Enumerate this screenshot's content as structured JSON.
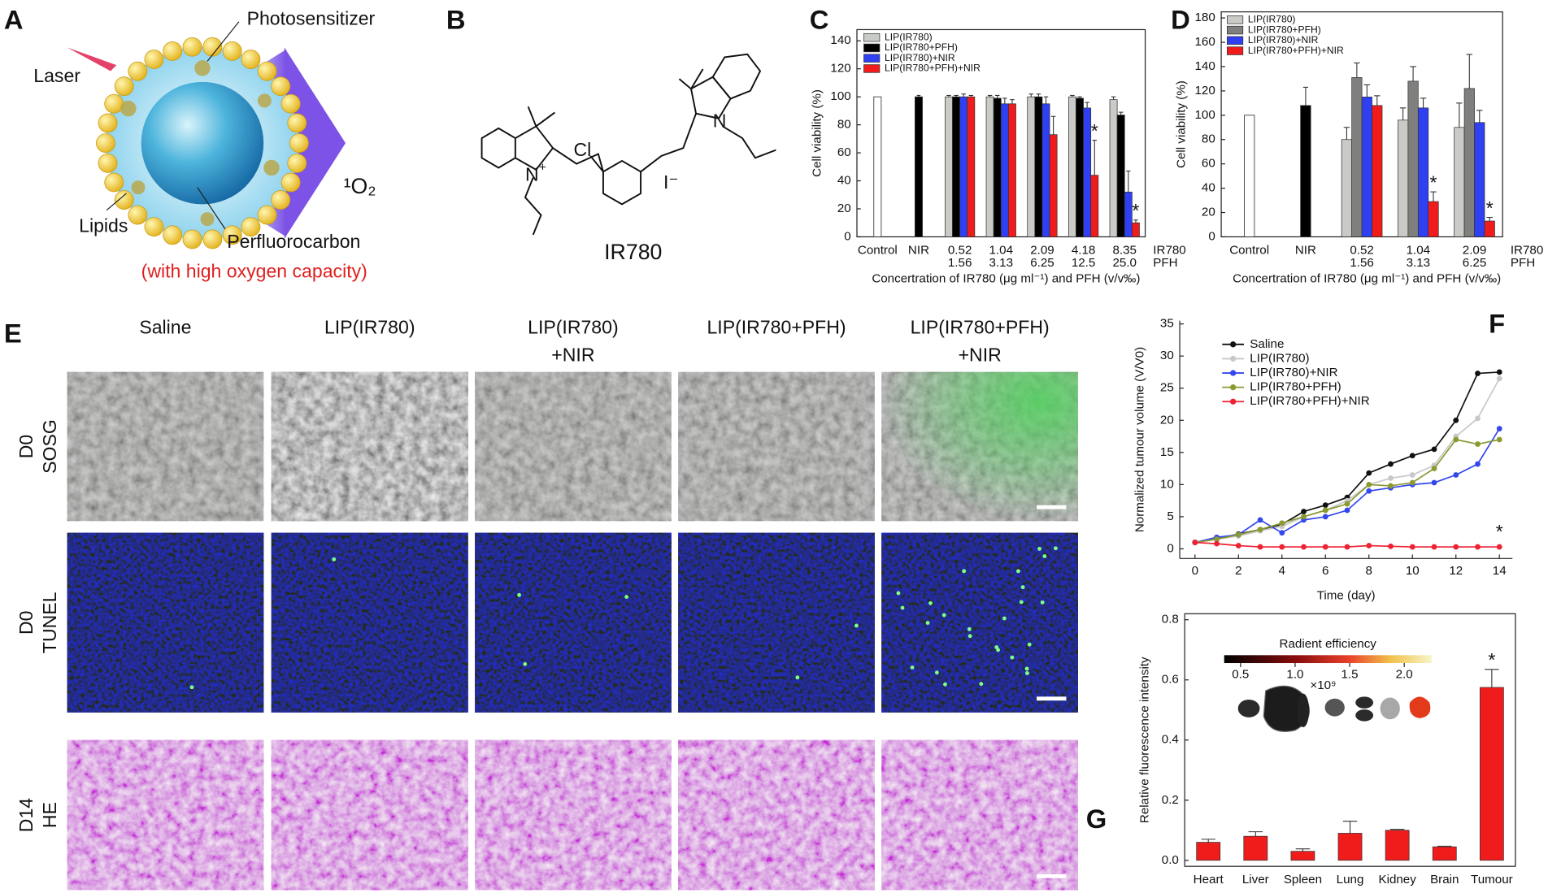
{
  "panel_a": {
    "panel_label": "A",
    "laser": "Laser",
    "photosensitizer": "Photosensitizer",
    "singlet_oxygen": "¹O₂",
    "lipids": "Lipids",
    "perfluorocarbon": "Perfluorocarbon",
    "oxygen_note": "(with high oxygen capacity)"
  },
  "panel_b": {
    "panel_label": "B",
    "chlorine": "Cl",
    "nitrogen_left": "N",
    "charge": "+",
    "nitrogen_right": "N",
    "counter_ion": "I⁻",
    "compound": "IR780"
  },
  "panel_e": {
    "panel_label": "E",
    "columns": [
      [
        "Saline"
      ],
      [
        "LIP(IR780)"
      ],
      [
        "LIP(IR780)",
        "+NIR"
      ],
      [
        "LIP(IR780+PFH)"
      ],
      [
        "LIP(IR780+PFH)",
        "+NIR"
      ]
    ],
    "rows": [
      [
        "D0",
        "SOSG"
      ],
      [
        "D0",
        "TUNEL"
      ],
      [
        "D14",
        "HE"
      ]
    ]
  },
  "chart_data": [
    {
      "type": "bar",
      "panel_label": "C",
      "ylabel": "Cell viability (%)",
      "xlabel": "Concertration of IR780 (μg ml⁻¹) and PFH (v/v‰)",
      "categories": [
        "Control",
        "NIR",
        "0.52",
        "1.04",
        "2.09",
        "4.18",
        "8.35"
      ],
      "categories_pfh": [
        null,
        null,
        "1.56",
        "3.13",
        "6.25",
        "12.5",
        "25.0"
      ],
      "row_labels": [
        "IR780",
        "PFH"
      ],
      "reference_values": [
        100,
        100
      ],
      "reference_errors": [
        null,
        1
      ],
      "reference_colors": [
        "#ffffff",
        "#000000"
      ],
      "series": [
        {
          "name": "LIP(IR780)",
          "color": "#c9cbc6",
          "values": [
            null,
            null,
            100,
            100,
            100,
            100,
            98
          ],
          "errors": [
            null,
            null,
            1,
            1,
            2,
            1,
            2
          ]
        },
        {
          "name": "LIP(IR780+PFH)",
          "color": "#000000",
          "values": [
            null,
            null,
            100,
            99,
            100,
            99,
            87
          ],
          "errors": [
            null,
            null,
            1,
            2,
            2,
            1,
            2
          ]
        },
        {
          "name": "LIP(IR780)+NIR",
          "color": "#2f3ff2",
          "values": [
            null,
            null,
            100,
            95,
            95,
            92,
            32
          ],
          "errors": [
            null,
            null,
            2,
            4,
            5,
            4,
            15
          ]
        },
        {
          "name": "LIP(IR780+PFH)+NIR",
          "color": "#f01c1c",
          "values": [
            null,
            null,
            100,
            95,
            73,
            44,
            10
          ],
          "errors": [
            null,
            null,
            1,
            3,
            13,
            25,
            2
          ],
          "significance": [
            null,
            null,
            null,
            null,
            null,
            "*",
            "*"
          ]
        }
      ],
      "ylim": [
        0,
        148
      ],
      "yticks": [
        0,
        20,
        40,
        60,
        80,
        100,
        120,
        140
      ],
      "legend": "upper left"
    },
    {
      "type": "bar",
      "panel_label": "D",
      "ylabel": "Cell viability (%)",
      "xlabel": "Concertration of IR780 (μg ml⁻¹) and PFH (v/v‰)",
      "categories": [
        "Control",
        "NIR",
        "0.52",
        "1.04",
        "2.09"
      ],
      "categories_pfh": [
        null,
        null,
        "1.56",
        "3.13",
        "6.25"
      ],
      "row_labels": [
        "IR780",
        "PFH"
      ],
      "reference_values": [
        100,
        108
      ],
      "reference_errors": [
        null,
        15
      ],
      "reference_colors": [
        "#ffffff",
        "#000000"
      ],
      "series": [
        {
          "name": "LIP(IR780)",
          "color": "#c9cbc6",
          "values": [
            null,
            null,
            80,
            96,
            90
          ],
          "errors": [
            null,
            null,
            10,
            10,
            20
          ]
        },
        {
          "name": "LIP(IR780+PFH)",
          "color": "#7f807d",
          "values": [
            null,
            null,
            131,
            128,
            122
          ],
          "errors": [
            null,
            null,
            12,
            12,
            28
          ]
        },
        {
          "name": "LIP(IR780)+NIR",
          "color": "#2f3ff2",
          "values": [
            null,
            null,
            115,
            106,
            94
          ],
          "errors": [
            null,
            null,
            10,
            8,
            10
          ]
        },
        {
          "name": "LIP(IR780+PFH)+NIR",
          "color": "#f01c1c",
          "values": [
            null,
            null,
            108,
            29,
            13
          ],
          "errors": [
            null,
            null,
            8,
            8,
            3
          ],
          "significance": [
            null,
            null,
            null,
            "*",
            "*"
          ]
        }
      ],
      "ylim": [
        0,
        185
      ],
      "yticks": [
        0,
        20,
        40,
        60,
        80,
        100,
        120,
        140,
        160,
        180
      ],
      "legend": "upper left"
    },
    {
      "type": "line",
      "panel_label": "F",
      "xlabel": "Time (day)",
      "ylabel": "Normalized tumour volume (V/V0)",
      "x": [
        0,
        1,
        2,
        3,
        4,
        5,
        6,
        7,
        8,
        9,
        10,
        11,
        12,
        13,
        14
      ],
      "series": [
        {
          "name": "Saline",
          "color": "#111111",
          "values": [
            1,
            1.5,
            2.3,
            3,
            3.8,
            5.8,
            6.8,
            8,
            11.8,
            13.2,
            14.5,
            15.5,
            20,
            27.3,
            27.5
          ]
        },
        {
          "name": "LIP(IR780)",
          "color": "#c8c8c8",
          "values": [
            1,
            1.5,
            2,
            2.8,
            3.5,
            5,
            6,
            7.5,
            10,
            11,
            11.5,
            13,
            17.5,
            20.3,
            26.5
          ]
        },
        {
          "name": "LIP(IR780)+NIR",
          "color": "#3347ee",
          "values": [
            1,
            1.8,
            2.2,
            4.5,
            2.5,
            4.5,
            5,
            6,
            9,
            9.5,
            10,
            10.3,
            11.5,
            13.2,
            18.7
          ]
        },
        {
          "name": "LIP(IR780+PFH)",
          "color": "#8a9a30",
          "values": [
            1,
            1.5,
            2.2,
            3,
            4,
            5,
            6,
            7,
            10,
            9.8,
            10.3,
            12.5,
            17,
            16.3,
            17
          ]
        },
        {
          "name": "LIP(IR780+PFH)+NIR",
          "color": "#ee2233",
          "values": [
            1,
            0.8,
            0.5,
            0.3,
            0.3,
            0.3,
            0.3,
            0.3,
            0.5,
            0.4,
            0.3,
            0.3,
            0.3,
            0.3,
            0.3
          ],
          "significance": [
            null,
            null,
            null,
            null,
            null,
            null,
            null,
            null,
            null,
            null,
            null,
            null,
            null,
            null,
            "*"
          ]
        }
      ],
      "xlim": [
        -0.7,
        14.6
      ],
      "xticks": [
        0,
        2,
        4,
        6,
        8,
        10,
        12,
        14
      ],
      "ylim": [
        -1.5,
        35.5
      ],
      "yticks": [
        0,
        5,
        10,
        15,
        20,
        25,
        30,
        35
      ],
      "legend": "upper left"
    },
    {
      "type": "bar",
      "panel_label": "G",
      "ylabel": "Relative fluorescence intensity",
      "categories": [
        "Heart",
        "Liver",
        "Spleen",
        "Lung",
        "Kidney",
        "Brain",
        "Tumour"
      ],
      "values": [
        0.06,
        0.08,
        0.03,
        0.09,
        0.1,
        0.045,
        0.575
      ],
      "errors": [
        0.01,
        0.015,
        0.008,
        0.04,
        0.003,
        0.002,
        0.06
      ],
      "significance": [
        null,
        null,
        null,
        null,
        null,
        null,
        "*"
      ],
      "color": "#f01c1c",
      "ylim": [
        -0.02,
        0.82
      ],
      "yticks": [
        {
          "value": 0,
          "label": "0.0"
        },
        0.2,
        0.4,
        0.6,
        0.8
      ],
      "colorbar": {
        "title": "Radient efficiency",
        "range": [
          0.35,
          2.25
        ],
        "ticks": [
          0.5,
          {
            "value": 1,
            "label": "1.0"
          },
          1.5,
          {
            "value": 2,
            "label": "2.0"
          }
        ],
        "multiplier": "×10⁹"
      }
    }
  ]
}
